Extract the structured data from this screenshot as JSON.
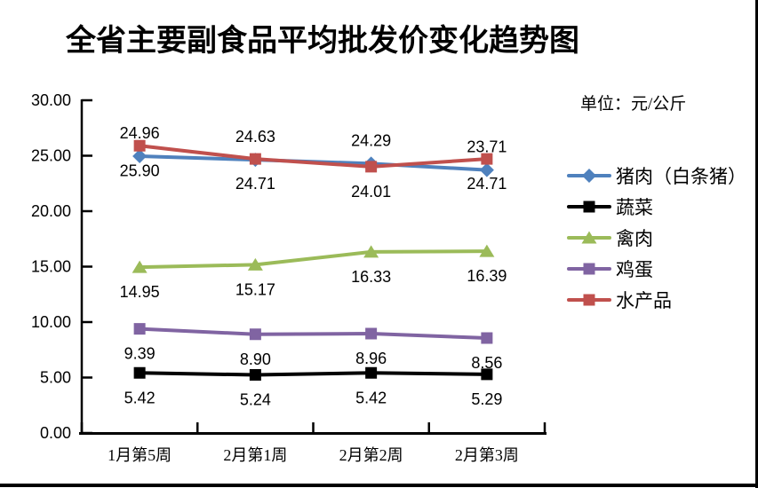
{
  "chart_data": {
    "type": "line",
    "title": "全省主要副食品平均批发价变化趋势图",
    "unit_label": "单位：元/公斤",
    "categories": [
      "1月第5周",
      "2月第1周",
      "2月第2周",
      "2月第3周"
    ],
    "series": [
      {
        "id": "pork",
        "name": "猪肉（白条猪）",
        "values": [
          24.96,
          24.63,
          24.29,
          23.71
        ],
        "color": "#4F81BD",
        "marker": "diamond",
        "label_position": "above"
      },
      {
        "id": "vegetables",
        "name": "蔬菜",
        "values": [
          5.42,
          5.24,
          5.42,
          5.29
        ],
        "color": "#000000",
        "marker": "square",
        "label_position": "below"
      },
      {
        "id": "poultry",
        "name": "禽肉",
        "values": [
          14.95,
          15.17,
          16.33,
          16.39
        ],
        "color": "#9BBB59",
        "marker": "triangle",
        "label_position": "below"
      },
      {
        "id": "eggs",
        "name": "鸡蛋",
        "values": [
          9.39,
          8.9,
          8.96,
          8.56
        ],
        "color": "#8064A2",
        "marker": "square",
        "label_position": "below"
      },
      {
        "id": "aquatic",
        "name": "水产品",
        "values": [
          25.9,
          24.71,
          24.01,
          24.71
        ],
        "color": "#C0504D",
        "marker": "square",
        "label_position": "below"
      }
    ],
    "ylim": [
      0,
      30
    ],
    "ytick_step": 5,
    "value_decimals": 2,
    "grid": false,
    "legend_position": "right",
    "axis_color": "#000000",
    "label_color": "#000000"
  }
}
